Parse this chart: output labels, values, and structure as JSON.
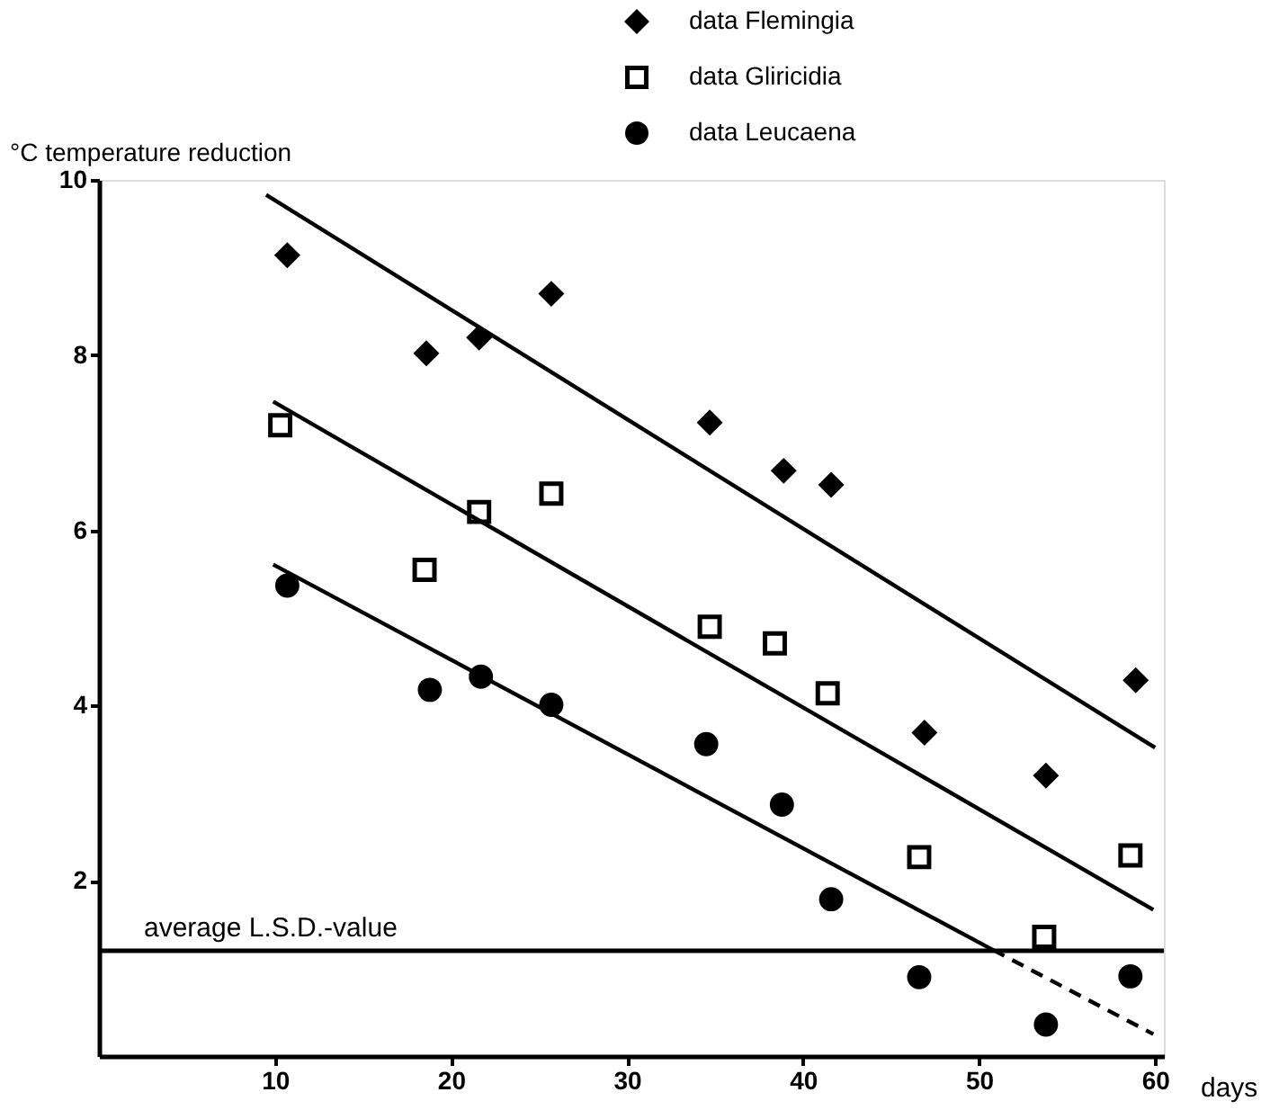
{
  "chart_data": {
    "type": "scatter",
    "xlabel": "days",
    "ylabel": "°C temperature reduction",
    "xlim": [
      0,
      60.5
    ],
    "ylim": [
      0,
      10
    ],
    "xticks": [
      10,
      20,
      30,
      40,
      50,
      60
    ],
    "yticks": [
      2,
      4,
      6,
      8,
      10
    ],
    "grid": false,
    "legend": "top right",
    "series": [
      {
        "name": "data Flemingia",
        "color": "#000000",
        "marker": "diamond",
        "x": [
          10.7,
          18.6,
          21.6,
          25.7,
          34.7,
          38.9,
          41.6,
          46.9,
          53.8,
          58.9
        ],
        "values": [
          9.14,
          8.02,
          8.2,
          8.7,
          7.23,
          6.68,
          6.52,
          3.69,
          3.2,
          4.29
        ]
      },
      {
        "name": "data Gliricidia",
        "color": "#000000",
        "marker": "square",
        "x": [
          10.3,
          18.5,
          21.6,
          25.7,
          34.7,
          38.4,
          41.4,
          46.6,
          53.7,
          58.6
        ],
        "values": [
          7.2,
          5.55,
          6.21,
          6.42,
          4.9,
          4.71,
          4.14,
          2.27,
          1.36,
          2.29
        ]
      },
      {
        "name": "data Leucaena",
        "color": "#000000",
        "marker": "circle",
        "x": [
          10.7,
          18.8,
          21.7,
          25.7,
          34.5,
          38.8,
          41.6,
          46.6,
          53.8,
          58.6
        ],
        "values": [
          5.37,
          4.18,
          4.33,
          4.01,
          3.56,
          2.87,
          1.79,
          0.9,
          0.36,
          0.91
        ]
      },
      {
        "type": "line",
        "color": "#000000",
        "line_style": "solid",
        "x": [
          9.5,
          60.0
        ],
        "values": [
          9.83,
          3.52
        ]
      },
      {
        "type": "line",
        "color": "#000000",
        "line_style": "solid",
        "x": [
          9.9,
          59.9
        ],
        "values": [
          7.47,
          1.67
        ]
      },
      {
        "type": "line",
        "color": "#000000",
        "line_style": "solid",
        "x": [
          9.9,
          50.8
        ],
        "values": [
          5.61,
          1.21
        ]
      },
      {
        "type": "line",
        "color": "#000000",
        "line_style": "dashed",
        "x": [
          50.8,
          59.9
        ],
        "values": [
          1.21,
          0.25
        ]
      }
    ],
    "ref_lines": [
      {
        "axis": "y",
        "value": 1.2,
        "label": "average L.S.D.-value",
        "color": "#000000"
      }
    ]
  }
}
